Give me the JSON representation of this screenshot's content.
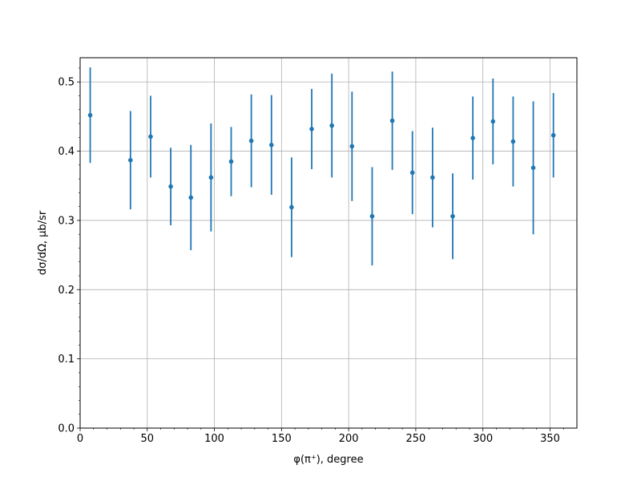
{
  "chart_data": {
    "type": "scatter",
    "title": "",
    "xlabel": "φ(π⁺), degree",
    "ylabel": "dσ/dΩ, μb/sr",
    "xlim": [
      0,
      370
    ],
    "ylim": [
      0,
      0.535
    ],
    "xticks": [
      0,
      50,
      100,
      150,
      200,
      250,
      300,
      350
    ],
    "yticks": [
      0.0,
      0.1,
      0.2,
      0.3,
      0.4,
      0.5
    ],
    "xtick_labels": [
      "0",
      "50",
      "100",
      "150",
      "200",
      "250",
      "300",
      "350"
    ],
    "ytick_labels": [
      "0.0",
      "0.1",
      "0.2",
      "0.3",
      "0.4",
      "0.5"
    ],
    "grid": true,
    "color": "#1f77b4",
    "series": [
      {
        "x": [
          7.5,
          37.5,
          52.5,
          67.5,
          82.5,
          97.5,
          112.5,
          127.5,
          142.5,
          157.5,
          172.5,
          187.5,
          202.5,
          217.5,
          232.5,
          247.5,
          262.5,
          277.5,
          292.5,
          307.5,
          322.5,
          337.5,
          352.5
        ],
        "y": [
          0.452,
          0.387,
          0.421,
          0.349,
          0.333,
          0.362,
          0.385,
          0.415,
          0.409,
          0.319,
          0.432,
          0.437,
          0.407,
          0.306,
          0.444,
          0.369,
          0.362,
          0.306,
          0.419,
          0.443,
          0.414,
          0.376,
          0.423
        ],
        "yerr": [
          0.069,
          0.071,
          0.059,
          0.056,
          0.076,
          0.078,
          0.05,
          0.067,
          0.072,
          0.072,
          0.058,
          0.075,
          0.079,
          0.071,
          0.071,
          0.06,
          0.072,
          0.062,
          0.06,
          0.062,
          0.065,
          0.096,
          0.061
        ]
      }
    ]
  }
}
